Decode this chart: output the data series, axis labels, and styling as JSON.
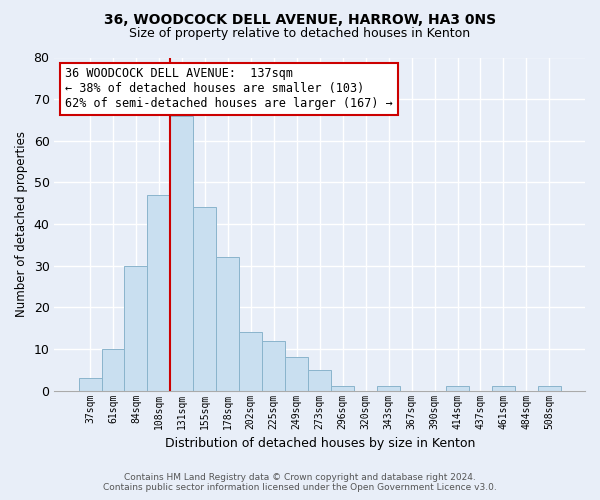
{
  "title": "36, WOODCOCK DELL AVENUE, HARROW, HA3 0NS",
  "subtitle": "Size of property relative to detached houses in Kenton",
  "xlabel": "Distribution of detached houses by size in Kenton",
  "ylabel": "Number of detached properties",
  "bar_labels": [
    "37sqm",
    "61sqm",
    "84sqm",
    "108sqm",
    "131sqm",
    "155sqm",
    "178sqm",
    "202sqm",
    "225sqm",
    "249sqm",
    "273sqm",
    "296sqm",
    "320sqm",
    "343sqm",
    "367sqm",
    "390sqm",
    "414sqm",
    "437sqm",
    "461sqm",
    "484sqm",
    "508sqm"
  ],
  "bar_values": [
    3,
    10,
    30,
    47,
    66,
    44,
    32,
    14,
    12,
    8,
    5,
    1,
    0,
    1,
    0,
    0,
    1,
    0,
    1,
    0,
    1
  ],
  "bar_color": "#c9dff0",
  "bar_edge_color": "#8ab4cc",
  "vline_index": 4,
  "vline_color": "#cc0000",
  "ylim": [
    0,
    80
  ],
  "yticks": [
    0,
    10,
    20,
    30,
    40,
    50,
    60,
    70,
    80
  ],
  "annotation_title": "36 WOODCOCK DELL AVENUE:  137sqm",
  "annotation_line1": "← 38% of detached houses are smaller (103)",
  "annotation_line2": "62% of semi-detached houses are larger (167) →",
  "annotation_box_color": "#ffffff",
  "annotation_box_edge": "#cc0000",
  "footer1": "Contains HM Land Registry data © Crown copyright and database right 2024.",
  "footer2": "Contains public sector information licensed under the Open Government Licence v3.0.",
  "bg_color": "#e8eef8",
  "plot_bg_color": "#e8eef8",
  "grid_color": "#ffffff",
  "title_fontsize": 10,
  "subtitle_fontsize": 9
}
